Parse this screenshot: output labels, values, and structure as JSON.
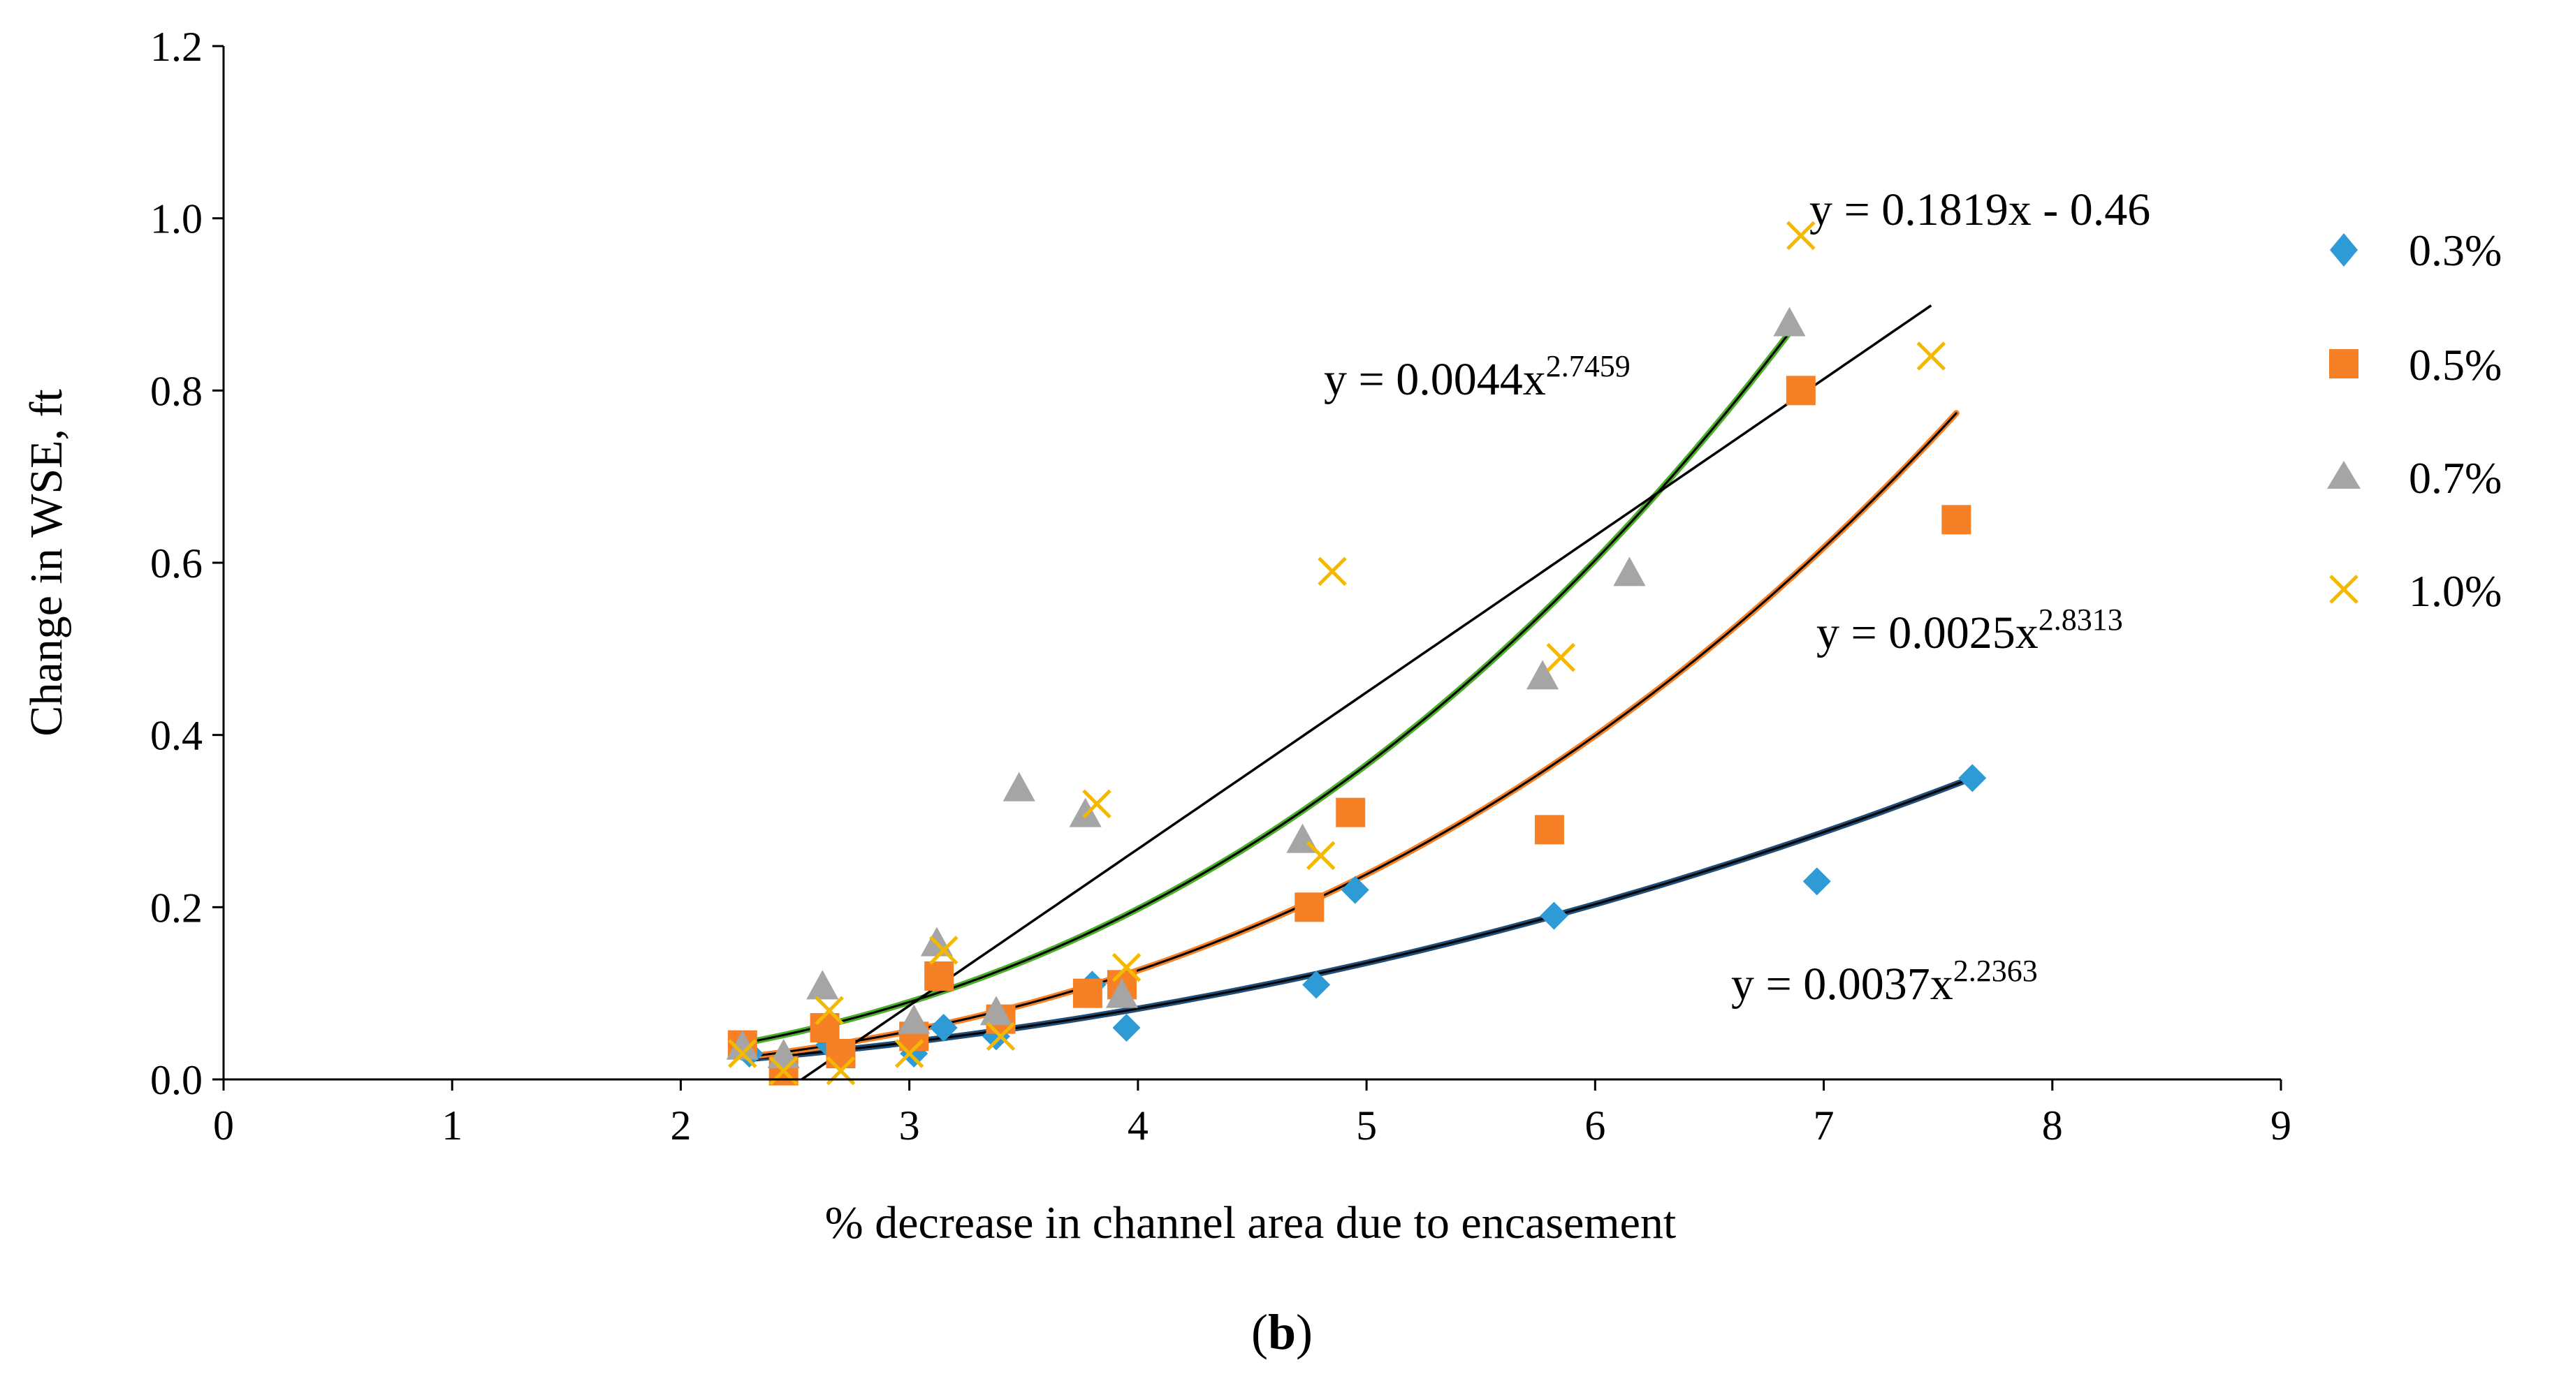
{
  "caption": {
    "open": "(",
    "letter": "b",
    "close": ")"
  },
  "chart_data": {
    "type": "scatter",
    "title": "",
    "xlabel": "% decrease in channel area due to encasement",
    "ylabel": "Change in WSE, ft",
    "xlim": [
      0,
      9
    ],
    "ylim": [
      0,
      1.2
    ],
    "x_ticks": [
      0,
      1,
      2,
      3,
      4,
      5,
      6,
      7,
      8,
      9
    ],
    "x_tick_labels": [
      "0",
      "1",
      "2",
      "3",
      "4",
      "5",
      "6",
      "7",
      "8",
      "9"
    ],
    "y_ticks": [
      0,
      0.2,
      0.4,
      0.6,
      0.8,
      1.0,
      1.2
    ],
    "y_tick_labels": [
      "0.0",
      "0.2",
      "0.4",
      "0.6",
      "0.8",
      "1.0",
      "1.2"
    ],
    "grid": false,
    "legend_position": "right",
    "series": [
      {
        "name": "0.3%",
        "marker": "diamond",
        "color": "#2E9BD6",
        "points": [
          [
            2.3,
            0.03
          ],
          [
            2.45,
            0.02
          ],
          [
            2.65,
            0.04
          ],
          [
            3.02,
            0.03
          ],
          [
            3.15,
            0.06
          ],
          [
            3.38,
            0.05
          ],
          [
            3.8,
            0.11
          ],
          [
            3.95,
            0.06
          ],
          [
            4.78,
            0.11
          ],
          [
            4.95,
            0.22
          ],
          [
            5.82,
            0.19
          ],
          [
            6.97,
            0.23
          ],
          [
            7.65,
            0.35
          ]
        ],
        "trendline": {
          "type": "power",
          "a": 0.0037,
          "b": 2.2363,
          "x_range": [
            2.3,
            7.65
          ],
          "color": "#1F4E79"
        }
      },
      {
        "name": "0.5%",
        "marker": "square",
        "color": "#F58025",
        "points": [
          [
            2.27,
            0.04
          ],
          [
            2.45,
            0.01
          ],
          [
            2.63,
            0.06
          ],
          [
            2.7,
            0.03
          ],
          [
            3.02,
            0.05
          ],
          [
            3.13,
            0.12
          ],
          [
            3.4,
            0.07
          ],
          [
            3.78,
            0.1
          ],
          [
            3.93,
            0.11
          ],
          [
            4.75,
            0.2
          ],
          [
            4.93,
            0.31
          ],
          [
            5.8,
            0.29
          ],
          [
            6.9,
            0.8
          ],
          [
            7.58,
            0.65
          ]
        ],
        "trendline": {
          "type": "power",
          "a": 0.0025,
          "b": 2.8313,
          "x_range": [
            2.27,
            7.58
          ],
          "color": "#F58025"
        }
      },
      {
        "name": "0.7%",
        "marker": "triangle",
        "color": "#A5A5A5",
        "points": [
          [
            2.27,
            0.04
          ],
          [
            2.45,
            0.03
          ],
          [
            2.62,
            0.11
          ],
          [
            3.02,
            0.07
          ],
          [
            3.12,
            0.16
          ],
          [
            3.38,
            0.08
          ],
          [
            3.48,
            0.34
          ],
          [
            3.77,
            0.31
          ],
          [
            3.93,
            0.1
          ],
          [
            4.72,
            0.28
          ],
          [
            5.77,
            0.47
          ],
          [
            6.15,
            0.59
          ],
          [
            6.85,
            0.88
          ]
        ],
        "trendline": {
          "type": "power",
          "a": 0.0044,
          "b": 2.7459,
          "x_range": [
            2.27,
            6.85
          ],
          "color": "#4CAF2B"
        }
      },
      {
        "name": "1.0%",
        "marker": "x",
        "color": "#F5B800",
        "points": [
          [
            2.27,
            0.03
          ],
          [
            2.45,
            0.01
          ],
          [
            2.65,
            0.08
          ],
          [
            2.7,
            0.01
          ],
          [
            3.0,
            0.03
          ],
          [
            3.15,
            0.15
          ],
          [
            3.4,
            0.05
          ],
          [
            3.82,
            0.32
          ],
          [
            3.95,
            0.13
          ],
          [
            4.8,
            0.26
          ],
          [
            4.85,
            0.59
          ],
          [
            5.85,
            0.49
          ],
          [
            6.9,
            0.98
          ],
          [
            7.47,
            0.84
          ]
        ],
        "trendline": {
          "type": "linear",
          "slope": 0.1819,
          "intercept": -0.46,
          "x_range": [
            2.53,
            7.47
          ],
          "color": "#000000"
        }
      }
    ],
    "annotations": [
      {
        "id": "eq-linear",
        "base": "y = 0.1819x - 0.46",
        "sup": ""
      },
      {
        "id": "eq-07",
        "base": "y = 0.0044x",
        "sup": "2.7459"
      },
      {
        "id": "eq-05",
        "base": "y = 0.0025x",
        "sup": "2.8313"
      },
      {
        "id": "eq-03",
        "base": "y = 0.0037x",
        "sup": "2.2363"
      }
    ]
  }
}
